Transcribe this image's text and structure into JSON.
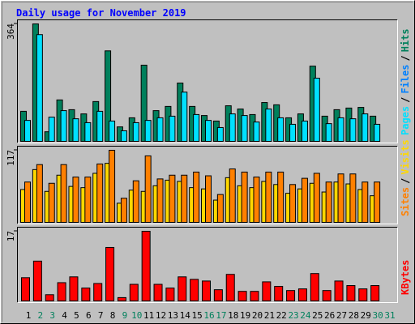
{
  "separator": "/",
  "chart_data": [
    {
      "type": "bar",
      "title": "Daily usage for November 2019",
      "ylim": [
        0,
        364
      ],
      "yticks": [
        364
      ],
      "series": [
        {
          "name": "Pages",
          "color": "#00e0ff",
          "values": [
            67,
            331,
            77,
            97,
            72,
            60,
            95,
            65,
            35,
            60,
            67,
            75,
            80,
            154,
            85,
            67,
            45,
            87,
            82,
            62,
            102,
            75,
            55,
            65,
            197,
            57,
            75,
            72,
            87,
            55,
            null
          ]
        },
        {
          "name": "Files",
          "color": "#0080ff",
          "values": [
            null,
            null,
            null,
            null,
            null,
            null,
            null,
            null,
            null,
            null,
            null,
            null,
            null,
            null,
            null,
            null,
            null,
            null,
            null,
            null,
            null,
            null,
            null,
            null,
            null,
            null,
            null,
            null,
            null,
            null,
            null
          ]
        },
        {
          "name": "Hits",
          "color": "#00805c",
          "values": [
            95,
            364,
            32,
            130,
            100,
            87,
            125,
            281,
            47,
            75,
            237,
            97,
            110,
            182,
            110,
            82,
            65,
            112,
            102,
            85,
            122,
            115,
            75,
            87,
            234,
            80,
            100,
            105,
            107,
            80,
            null
          ]
        }
      ]
    },
    {
      "type": "bar",
      "ylim": [
        0,
        117
      ],
      "yticks": [
        117
      ],
      "series": [
        {
          "name": "Sites",
          "color": "#ff8000",
          "values": [
            66,
            94,
            64,
            94,
            74,
            74,
            95,
            117,
            40,
            68,
            108,
            71,
            77,
            77,
            82,
            76,
            46,
            87,
            82,
            74,
            82,
            82,
            62,
            72,
            80,
            66,
            79,
            79,
            66,
            66,
            null
          ]
        },
        {
          "name": "Visits",
          "color": "#ffd800",
          "values": [
            54,
            86,
            51,
            77,
            59,
            57,
            80,
            96,
            32,
            53,
            51,
            60,
            69,
            67,
            57,
            55,
            37,
            73,
            60,
            57,
            67,
            62,
            48,
            55,
            64,
            50,
            66,
            63,
            54,
            44,
            null
          ]
        }
      ]
    },
    {
      "type": "bar",
      "ylim": [
        0,
        17
      ],
      "yticks": [
        17
      ],
      "x": [
        1,
        2,
        3,
        4,
        5,
        6,
        7,
        8,
        9,
        10,
        11,
        12,
        13,
        14,
        15,
        16,
        17,
        18,
        19,
        20,
        21,
        22,
        23,
        24,
        25,
        26,
        27,
        28,
        29,
        30,
        31
      ],
      "weekend": [
        false,
        true,
        true,
        false,
        false,
        false,
        false,
        false,
        true,
        true,
        false,
        false,
        false,
        false,
        false,
        true,
        true,
        false,
        false,
        false,
        false,
        false,
        true,
        true,
        false,
        false,
        false,
        false,
        false,
        true,
        true
      ],
      "weekend_color": "#00805c",
      "series": [
        {
          "name": "KBytes",
          "color": "#ff0000",
          "values": [
            5.8,
            9.8,
            1.7,
            4.6,
            6.0,
            3.3,
            4.4,
            13.1,
            1.0,
            4.2,
            17,
            4.2,
            3.3,
            6.0,
            5.4,
            5.0,
            2.9,
            6.6,
            2.5,
            2.5,
            4.8,
            3.7,
            2.7,
            3.1,
            6.8,
            2.7,
            5.0,
            3.9,
            3.1,
            3.9,
            null
          ]
        }
      ]
    }
  ]
}
